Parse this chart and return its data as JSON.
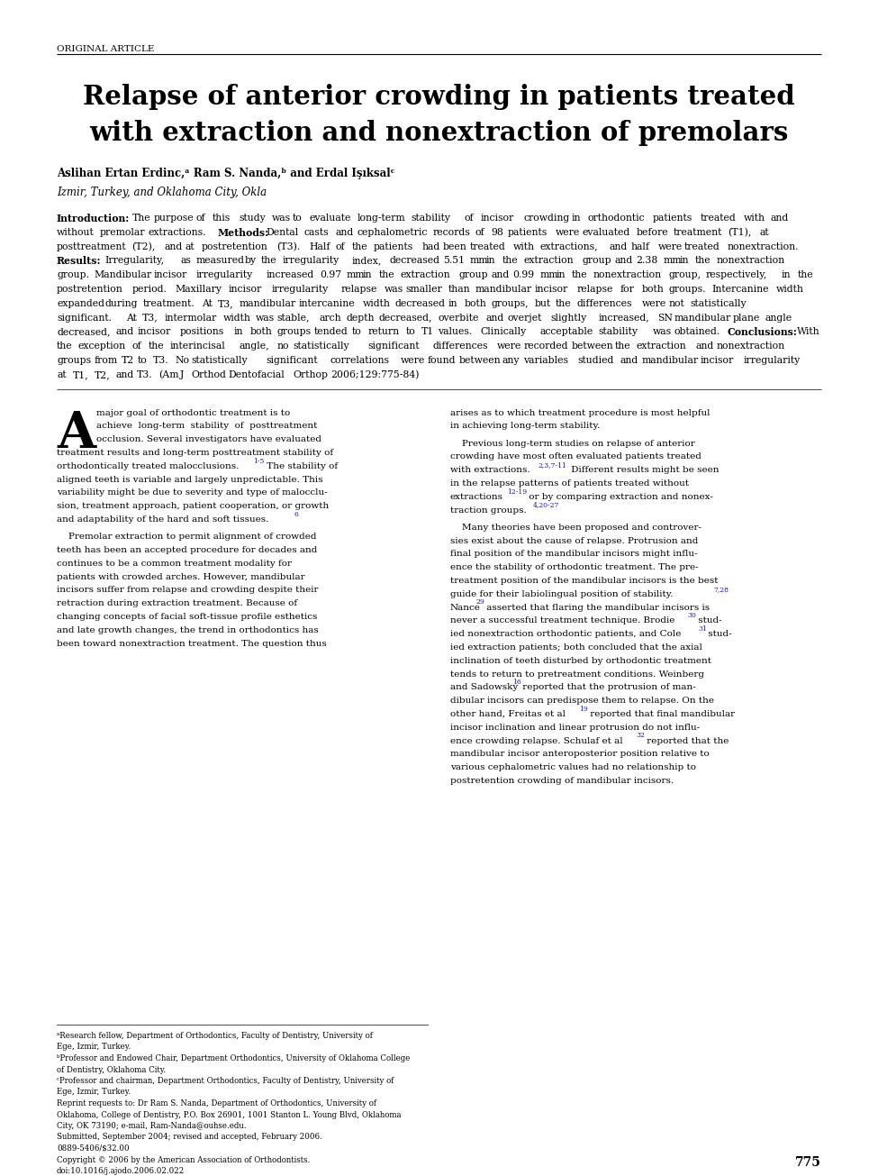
{
  "background_color": "#ffffff",
  "page_width": 9.75,
  "page_height": 13.05,
  "dpi": 100,
  "header_label": "ORIGINAL ARTICLE",
  "title_line1": "Relapse of anterior crowding in patients treated",
  "title_line2": "with extraction and nonextraction of premolars",
  "authors_line": "Aslihan Ertan Erdinc,ᵃ Ram S. Nanda,ᵇ and Erdal Işıksalᶜ",
  "affiliation_line": "Izmir, Turkey, and Oklahoma City, Okla",
  "abstract_text": "Introduction: The purpose of this study was to evaluate long-term stability of incisor crowding in orthodontic patients treated with and without premolar extractions. Methods: Dental casts and cephalometric records of 98 patients were evaluated before treatment (T1), at posttreatment (T2), and at postretention (T3). Half of the patients had been treated with extractions, and half were treated nonextraction. Results: Irregularity, as measured by the irregularity index, decreased 5.51 mm in the extraction group and 2.38 mm in the nonextraction group. Mandibular incisor irregularity increased 0.97 mm in the extraction group and 0.99 mm in the nonextraction group, respectively, in the postretention period. Maxillary incisor irregularity relapse was smaller than mandibular incisor relapse for both groups. Intercanine width expanded during treatment. At T3, mandibular intercanine width decreased in both groups, but the differences were not statistically significant. At T3, intermolar width was stable, arch depth decreased, overbite and overjet slightly increased, SN mandibular plane angle decreased, and incisor positions in both groups tended to return to T1 values. Clinically acceptable stability was obtained. Conclusions: With the exception of the interincisal angle, no statistically significant differences were recorded between the extraction and nonextraction groups from T2 to T3. No statistically significant correlations were found between any variables studied and mandibular incisor irregularity at T1, T2, and T3. (Am J Orthod Dentofacial Orthop 2006;129:775-84)",
  "bold_labels": [
    "Introduction:",
    "Methods:",
    "Results:",
    "Conclusions:"
  ],
  "col1_lines": [
    {
      "text": "major goal of orthodontic treatment is to",
      "indent": true,
      "dropcap": true
    },
    {
      "text": "achieve  long-term  stability  of  posttreatment",
      "indent": true
    },
    {
      "text": "occlusion. Several investigators have evaluated",
      "indent": true
    },
    {
      "text": "treatment results and long-term posttreatment stability of",
      "indent": false
    },
    {
      "text": "orthodontically treated malocclusions.",
      "ref": "1-5",
      "ref_after": " The stability of",
      "indent": false
    },
    {
      "text": "aligned teeth is variable and largely unpredictable. This",
      "indent": false
    },
    {
      "text": "variability might be due to severity and type of malocclu-",
      "indent": false
    },
    {
      "text": "sion, treatment approach, patient cooperation, or growth",
      "indent": false
    },
    {
      "text": "and adaptability of the hard and soft tissues.",
      "ref": "6",
      "indent": false
    },
    {
      "text": "",
      "indent": false,
      "spacer": true
    },
    {
      "text": "    Premolar extraction to permit alignment of crowded",
      "indent": false
    },
    {
      "text": "teeth has been an accepted procedure for decades and",
      "indent": false
    },
    {
      "text": "continues to be a common treatment modality for",
      "indent": false
    },
    {
      "text": "patients with crowded arches. However, mandibular",
      "indent": false
    },
    {
      "text": "incisors suffer from relapse and crowding despite their",
      "indent": false
    },
    {
      "text": "retraction during extraction treatment. Because of",
      "indent": false
    },
    {
      "text": "changing concepts of facial soft-tissue profile esthetics",
      "indent": false
    },
    {
      "text": "and late growth changes, the trend in orthodontics has",
      "indent": false
    },
    {
      "text": "been toward nonextraction treatment. The question thus",
      "indent": false
    }
  ],
  "col2_lines": [
    {
      "text": "arises as to which treatment procedure is most helpful"
    },
    {
      "text": "in achieving long-term stability."
    },
    {
      "text": "",
      "spacer": true
    },
    {
      "text": "    Previous long-term studies on relapse of anterior"
    },
    {
      "text": "crowding have most often evaluated patients treated"
    },
    {
      "text": "with extractions.",
      "ref": "2,3,7-11",
      "ref_after": " Different results might be seen"
    },
    {
      "text": "in the relapse patterns of patients treated without"
    },
    {
      "text": "extractions",
      "ref": "12-19",
      "ref_after": " or by comparing extraction and nonex-"
    },
    {
      "text": "traction groups.",
      "ref": "4,20-27"
    },
    {
      "text": "",
      "spacer": true
    },
    {
      "text": "    Many theories have been proposed and controver-"
    },
    {
      "text": "sies exist about the cause of relapse. Protrusion and"
    },
    {
      "text": "final position of the mandibular incisors might influ-"
    },
    {
      "text": "ence the stability of orthodontic treatment. The pre-"
    },
    {
      "text": "treatment position of the mandibular incisors is the best"
    },
    {
      "text": "guide for their labiolingual position of stability.",
      "ref": "7,28",
      "ref_after": ""
    },
    {
      "text": "Nance",
      "ref": "29",
      "ref_after": " asserted that flaring the mandibular incisors is"
    },
    {
      "text": "never a successful treatment technique. Brodie",
      "ref": "30",
      "ref_after": " stud-"
    },
    {
      "text": "ied nonextraction orthodontic patients, and Cole",
      "ref": "31",
      "ref_after": " stud-"
    },
    {
      "text": "ied extraction patients; both concluded that the axial"
    },
    {
      "text": "inclination of teeth disturbed by orthodontic treatment"
    },
    {
      "text": "tends to return to pretreatment conditions. Weinberg"
    },
    {
      "text": "and Sadowsky",
      "ref": "16",
      "ref_after": " reported that the protrusion of man-"
    },
    {
      "text": "dibular incisors can predispose them to relapse. On the"
    },
    {
      "text": "other hand, Freitas et al",
      "ref": "19",
      "ref_after": " reported that final mandibular"
    },
    {
      "text": "incisor inclination and linear protrusion do not influ-"
    },
    {
      "text": "ence crowding relapse. Schulaf et al",
      "ref": "32",
      "ref_after": " reported that the"
    },
    {
      "text": "mandibular incisor anteroposterior position relative to"
    },
    {
      "text": "various cephalometric values had no relationship to"
    },
    {
      "text": "postretention crowding of mandibular incisors."
    }
  ],
  "footnotes": [
    "ᵃResearch fellow, Department of Orthodontics, Faculty of Dentistry, University of Ege, Izmir, Turkey.",
    "ᵇProfessor and Endowed Chair, Department Orthodontics, University of Oklahoma College of Dentistry, Oklahoma City.",
    "ᶜProfessor and chairman, Department Orthodontics, Faculty of Dentistry, University of Ege, Izmir, Turkey.",
    "Reprint requests to: Dr Ram S. Nanda, Department of Orthodontics, University of Oklahoma, College of Dentistry, P.O. Box 26901, 1001 Stanton L. Young Blvd, Oklahoma City, OK 73190; e-mail, Ram-Nanda@ouhse.edu.",
    "Submitted, September 2004; revised and accepted, February 2006.",
    "0889-5406/$32.00",
    "Copyright © 2006 by the American Association of Orthodontists.",
    "doi:10.1016/j.ajodo.2006.02.022"
  ],
  "page_number": "775"
}
